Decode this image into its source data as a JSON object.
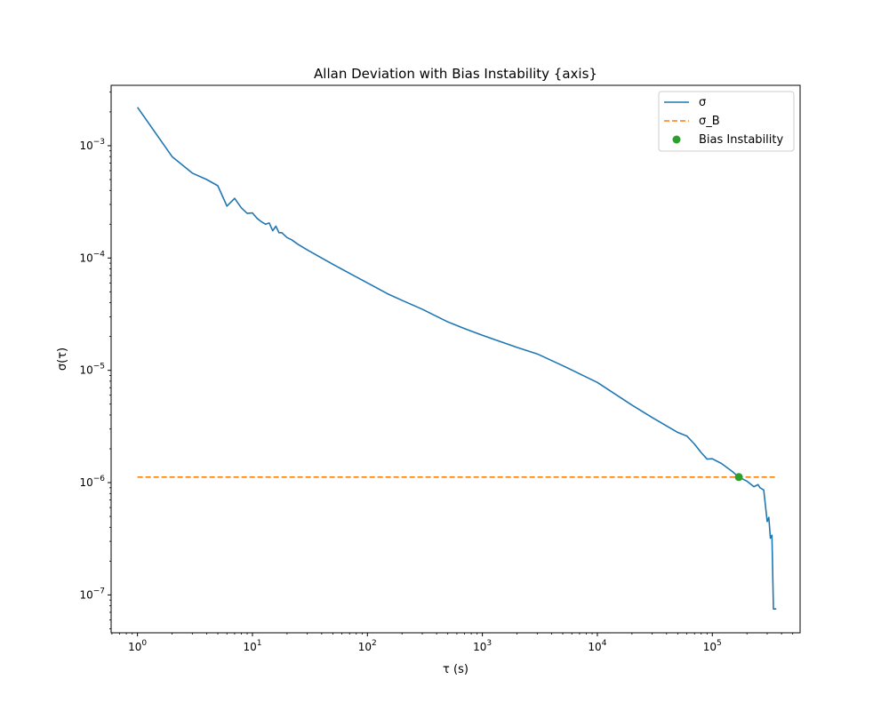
{
  "chart_data": {
    "type": "line",
    "title": "Allan Deviation with Bias Instability {axis}",
    "xlabel": "τ (s)",
    "ylabel": "σ(τ)",
    "xscale": "log",
    "yscale": "log",
    "xlim": [
      0.59,
      580000
    ],
    "ylim": [
      4.6e-08,
      0.00345
    ],
    "grid": false,
    "legend_position": "top-right",
    "x_ticks": [
      {
        "value": 1,
        "base": "10",
        "exp": "0"
      },
      {
        "value": 10,
        "base": "10",
        "exp": "1"
      },
      {
        "value": 100,
        "base": "10",
        "exp": "2"
      },
      {
        "value": 1000,
        "base": "10",
        "exp": "3"
      },
      {
        "value": 10000,
        "base": "10",
        "exp": "4"
      },
      {
        "value": 100000,
        "base": "10",
        "exp": "5"
      }
    ],
    "y_ticks": [
      {
        "value": 1e-07,
        "base": "10",
        "exp": "−7"
      },
      {
        "value": 1e-06,
        "base": "10",
        "exp": "−6"
      },
      {
        "value": 1e-05,
        "base": "10",
        "exp": "−5"
      },
      {
        "value": 0.0001,
        "base": "10",
        "exp": "−4"
      },
      {
        "value": 0.001,
        "base": "10",
        "exp": "−3"
      }
    ],
    "series": [
      {
        "name": "σ",
        "style": "solid",
        "color": "#1f77b4",
        "x": [
          1,
          2,
          3,
          4,
          5,
          6,
          7,
          8,
          9,
          10,
          11,
          12,
          13,
          14,
          15,
          16,
          17,
          18,
          20,
          22,
          25,
          30,
          40,
          50,
          70,
          100,
          150,
          200,
          300,
          500,
          700,
          1000,
          2000,
          3000,
          5000,
          10000,
          20000,
          30000,
          50000,
          60000,
          70000,
          80000,
          90000,
          100000,
          120000,
          150000,
          170000,
          200000,
          230000,
          250000,
          260000,
          280000,
          300000,
          310000,
          320000,
          330000,
          340000,
          350000,
          355000,
          360000
        ],
        "y": [
          0.0022,
          0.0008,
          0.00057,
          0.0005,
          0.00044,
          0.00029,
          0.00034,
          0.00028,
          0.00025,
          0.000252,
          0.000225,
          0.00021,
          0.0002,
          0.000205,
          0.000175,
          0.000192,
          0.000168,
          0.000168,
          0.000152,
          0.000145,
          0.000132,
          0.000118,
          0.0001,
          8.8e-05,
          7.3e-05,
          6e-05,
          4.8e-05,
          4.2e-05,
          3.5e-05,
          2.7e-05,
          2.35e-05,
          2.05e-05,
          1.6e-05,
          1.4e-05,
          1.1e-05,
          7.8e-06,
          4.9e-06,
          3.8e-06,
          2.8e-06,
          2.6e-06,
          2.2e-06,
          1.85e-06,
          1.62e-06,
          1.63e-06,
          1.48e-06,
          1.25e-06,
          1.12e-06,
          1.03e-06,
          9.2e-07,
          9.6e-07,
          9e-07,
          8.6e-07,
          4.5e-07,
          4.9e-07,
          3.2e-07,
          3.4e-07,
          7.5e-08,
          7.5e-08,
          7.5e-08,
          7.5e-08
        ]
      },
      {
        "name": "σ_B",
        "style": "dashed",
        "color": "#ff7f0e",
        "x": [
          1,
          360000
        ],
        "y": [
          1.12e-06,
          1.12e-06
        ]
      },
      {
        "name": "Bias Instability",
        "style": "marker",
        "color": "#2ca02c",
        "x": [
          170000
        ],
        "y": [
          1.12e-06
        ]
      }
    ]
  }
}
